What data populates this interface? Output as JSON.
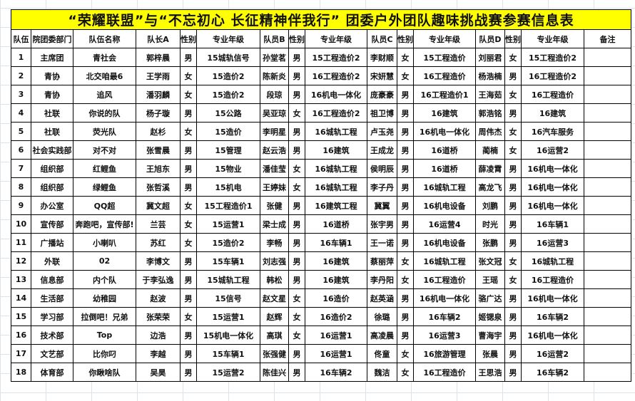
{
  "title": "“荣耀联盟”与“不忘初心 长征精神伴我行” 团委户外团队趣味挑战赛参赛信息表",
  "colors": {
    "title_bg": "#ffff00",
    "border": "#000000"
  },
  "headers": [
    "队伍",
    "院团委部门",
    "队伍名称",
    "队长A",
    "性别",
    "专业年级",
    "队员B",
    "性别",
    "专业年级",
    "队员C",
    "性别",
    "专业年级",
    "队员D",
    "性别",
    "专业年级",
    "备注"
  ],
  "rows": [
    [
      "1",
      "主席团",
      "青社会",
      "郭梓晨",
      "男",
      "15城轨信号",
      "孙堂茗",
      "男",
      "15工程造价2",
      "李财顺",
      "女",
      "15工程造价",
      "刘丽君",
      "女",
      "15工程造价2",
      ""
    ],
    [
      "2",
      "青协",
      "北交咱最6",
      "王学雨",
      "女",
      "15造价2",
      "陈新炎",
      "男",
      "16工程造价2",
      "宋妍慧",
      "女",
      "16工程造价",
      "杨浩楠",
      "男",
      "16工程造价2",
      ""
    ],
    [
      "3",
      "青协",
      "追风",
      "潘羽麟",
      "女",
      "15造价2",
      "段琼",
      "男",
      "16机电一体化",
      "庞豪豪",
      "男",
      "16工程造价1",
      "王海茹",
      "女",
      "16工程造价",
      ""
    ],
    [
      "4",
      "社联",
      "你说的队",
      "杨子璇",
      "男",
      "15公路",
      "吴亚琼",
      "女",
      "16工程造价2",
      "祖卫博",
      "男",
      "16建筑",
      "郭浩铭",
      "男",
      "16建筑",
      ""
    ],
    [
      "5",
      "社联",
      "荧光队",
      "赵杉",
      "女",
      "15造价",
      "李明星",
      "男",
      "16城轨工程",
      "卢玉尧",
      "男",
      "16机电一体化",
      "周伟杰",
      "女",
      "16汽车服务",
      ""
    ],
    [
      "6",
      "社会实践部",
      "对不对",
      "张雪晨",
      "男",
      "15管理",
      "赵云浩",
      "男",
      "16建筑",
      "王成龙",
      "男",
      "16道桥",
      "蔺楠",
      "女",
      "16运营2",
      ""
    ],
    [
      "7",
      "组织部",
      "红鲤鱼",
      "王旭东",
      "男",
      "15物业",
      "潘佳莹",
      "女",
      "16城轨工程",
      "侯明辰",
      "男",
      "16道桥",
      "薛凌霄",
      "男",
      "16机电一体化",
      ""
    ],
    [
      "8",
      "组织部",
      "绿鲤鱼",
      "张哲溪",
      "男",
      "15机电",
      "王婷妹",
      "女",
      "16城轨工程",
      "李子丹",
      "男",
      "16城轨工程",
      "高龙飞",
      "男",
      "16机电一体化",
      ""
    ],
    [
      "9",
      "办公室",
      "QQ超",
      "冀文超",
      "女",
      "15工程造价1",
      "张健",
      "男",
      "16建筑工程",
      "冀翼",
      "男",
      "16机电设备",
      "刘鹏",
      "男",
      "16机电一体化",
      ""
    ],
    [
      "10",
      "宣传部",
      "奔跑吧，宣传部!",
      "兰芸",
      "女",
      "15运营1",
      "梁士成",
      "男",
      "16道桥",
      "张宇男",
      "男",
      "16运营4",
      "时光",
      "男",
      "16车辆1",
      ""
    ],
    [
      "11",
      "广播站",
      "小喇叭",
      "苏红",
      "女",
      "15造价2",
      "李畅",
      "男",
      "16车辆1",
      "王一诺",
      "男",
      "16机电设备",
      "张鹏",
      "男",
      "16运营3",
      ""
    ],
    [
      "12",
      "外联",
      "02",
      "李博文",
      "男",
      "15车辆1",
      "刘志强",
      "男",
      "16建筑",
      "蔡丽萍",
      "女",
      "16城轨工程",
      "张文冠",
      "女",
      "16城轨工程",
      ""
    ],
    [
      "13",
      "信息部",
      "内个队",
      "于李弘逸",
      "男",
      "15城轨工程",
      "韩松",
      "男",
      "16建筑",
      "李丹阳",
      "女",
      "16工程造价",
      "王瑶",
      "女",
      "16工程造价",
      ""
    ],
    [
      "14",
      "生活部",
      "幼稚园",
      "赵波",
      "男",
      "15信号",
      "赵文星",
      "女",
      "16造价",
      "赵英涵",
      "男",
      "16机电一体化",
      "骆广达",
      "男",
      "16机电一体化",
      ""
    ],
    [
      "15",
      "学习部",
      "拉倒吧！兄弟",
      "张荣荣",
      "女",
      "15运营1",
      "赵辉",
      "女",
      "16造价2",
      "徐璐",
      "男",
      "16车辆2",
      "姬锶泉",
      "男",
      "16车辆2",
      ""
    ],
    [
      "16",
      "技术部",
      "Top",
      "边浩",
      "男",
      "15机电一体化",
      "高琪",
      "女",
      "16运营1",
      "高凌晨",
      "男",
      "16运营3",
      "曹海宇",
      "男",
      "16机电一体化",
      ""
    ],
    [
      "17",
      "文艺部",
      "比你叼",
      "李越",
      "男",
      "15车辆1",
      "张强健",
      "男",
      "16运营1",
      "佟童",
      "女",
      "16旅游管理",
      "张晨",
      "男",
      "16运营2",
      ""
    ],
    [
      "18",
      "体育部",
      "你瞅啥队",
      "吴昊",
      "男",
      "15运营2",
      "陈佳兴",
      "男",
      "16车辆2",
      "魏洁",
      "女",
      "16工程造价",
      "王思浩",
      "男",
      "16车辆2",
      ""
    ]
  ]
}
